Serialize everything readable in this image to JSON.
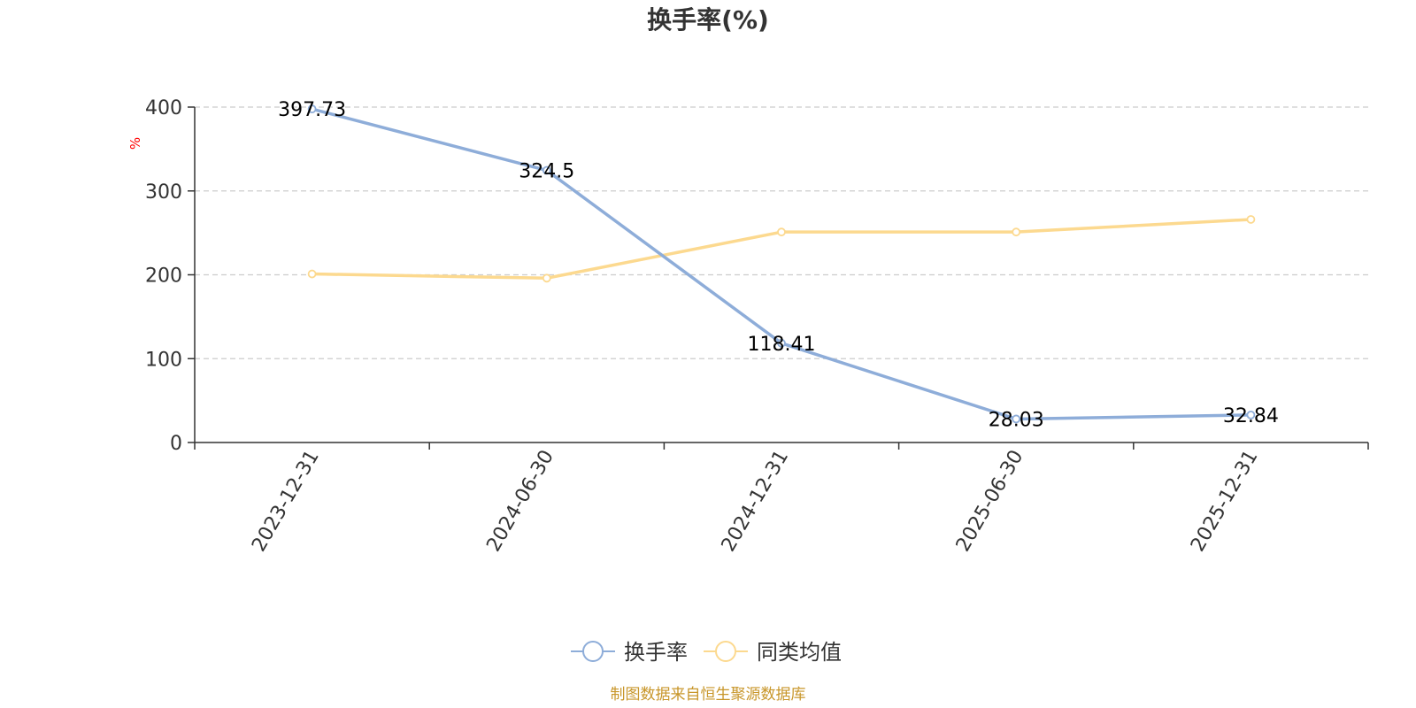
{
  "chart_data": {
    "type": "line",
    "title": "换手率(%)",
    "ylabel": "%",
    "ylim": [
      0,
      400
    ],
    "yticks": [
      0,
      100,
      200,
      300,
      400
    ],
    "categories": [
      "2023-12-31",
      "2024-06-30",
      "2024-12-31",
      "2025-06-30",
      "2025-12-31"
    ],
    "series": [
      {
        "name": "换手率",
        "values": [
          397.73,
          324.5,
          118.41,
          28.03,
          32.84
        ],
        "data_labels": [
          "397.73",
          "324.5",
          "118.41",
          "28.03",
          "32.84"
        ],
        "color": "#8eadd9",
        "show_labels": true
      },
      {
        "name": "同类均值",
        "values": [
          201,
          196,
          251,
          251,
          266
        ],
        "color": "#fcd98f",
        "show_labels": false
      }
    ],
    "grid": true,
    "legend": "bottom-center"
  },
  "source": "制图数据来自恒生聚源数据库",
  "colors": {
    "unit_label": "#ff0000",
    "source_text": "#c8962a",
    "axis": "#333333",
    "grid": "#cccccc"
  }
}
